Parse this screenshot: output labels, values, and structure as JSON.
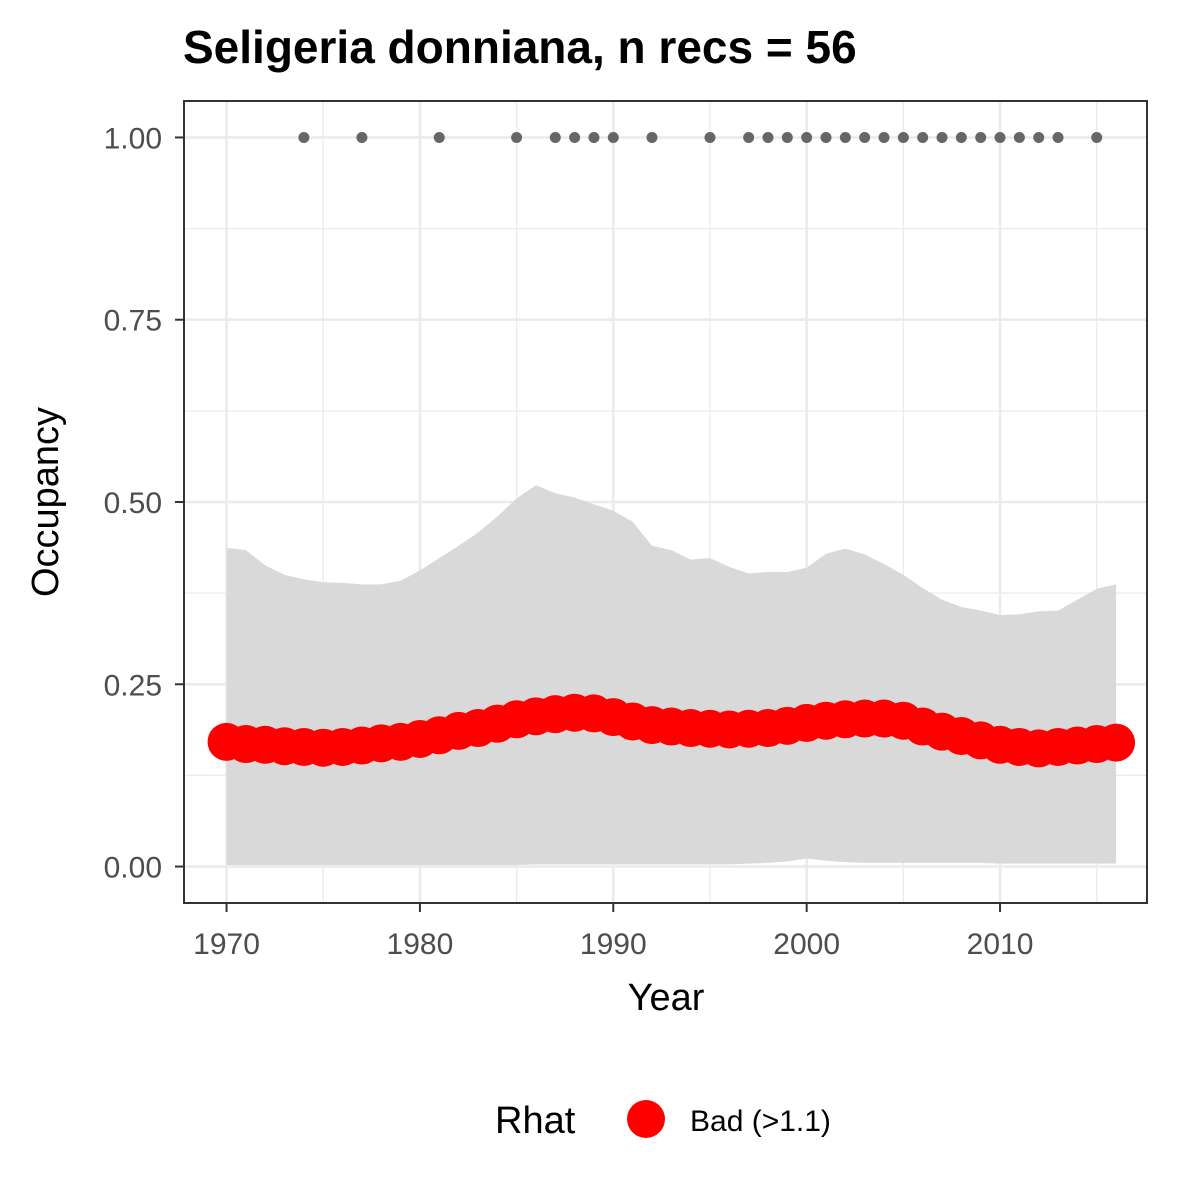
{
  "chart_data": {
    "type": "line",
    "title": "Seligeria donniana, n recs = 56",
    "xlabel": "Year",
    "ylabel": "Occupancy",
    "xlim": [
      1967.8,
      2017.6
    ],
    "ylim": [
      -0.05,
      1.05
    ],
    "x_ticks": [
      1970,
      1980,
      1990,
      2000,
      2010
    ],
    "y_ticks": [
      0.0,
      0.25,
      0.5,
      0.75,
      1.0
    ],
    "y_tick_labels": [
      "0.00",
      "0.25",
      "0.50",
      "0.75",
      "1.00"
    ],
    "grid": true,
    "legend": {
      "title": "Rhat",
      "position": "bottom",
      "entries": [
        {
          "label": "Bad (>1.1)",
          "color": "#ff0000"
        }
      ]
    },
    "colors": {
      "mean_line": "#ff0000",
      "ribbon": "#d9d9d9",
      "records": "#666666",
      "grid": "#ebebeb",
      "panel_border": "#333333"
    },
    "years": [
      1970,
      1971,
      1972,
      1973,
      1974,
      1975,
      1976,
      1977,
      1978,
      1979,
      1980,
      1981,
      1982,
      1983,
      1984,
      1985,
      1986,
      1987,
      1988,
      1989,
      1990,
      1991,
      1992,
      1993,
      1994,
      1995,
      1996,
      1997,
      1998,
      1999,
      2000,
      2001,
      2002,
      2003,
      2004,
      2005,
      2006,
      2007,
      2008,
      2009,
      2010,
      2011,
      2012,
      2013,
      2014,
      2015,
      2016
    ],
    "mean": [
      0.171,
      0.168,
      0.167,
      0.165,
      0.164,
      0.163,
      0.164,
      0.166,
      0.169,
      0.171,
      0.175,
      0.18,
      0.186,
      0.19,
      0.196,
      0.202,
      0.206,
      0.209,
      0.211,
      0.21,
      0.205,
      0.199,
      0.194,
      0.192,
      0.19,
      0.189,
      0.188,
      0.189,
      0.19,
      0.193,
      0.197,
      0.2,
      0.202,
      0.203,
      0.203,
      0.2,
      0.192,
      0.185,
      0.179,
      0.173,
      0.167,
      0.164,
      0.162,
      0.164,
      0.166,
      0.168,
      0.17
    ],
    "upper": [
      0.437,
      0.434,
      0.413,
      0.4,
      0.394,
      0.39,
      0.389,
      0.387,
      0.387,
      0.392,
      0.406,
      0.423,
      0.44,
      0.458,
      0.48,
      0.505,
      0.523,
      0.512,
      0.506,
      0.497,
      0.488,
      0.473,
      0.44,
      0.434,
      0.421,
      0.423,
      0.411,
      0.402,
      0.404,
      0.404,
      0.41,
      0.429,
      0.436,
      0.428,
      0.415,
      0.4,
      0.382,
      0.366,
      0.356,
      0.351,
      0.345,
      0.346,
      0.35,
      0.351,
      0.366,
      0.381,
      0.387
    ],
    "lower": [
      0.002,
      0.002,
      0.002,
      0.002,
      0.002,
      0.002,
      0.002,
      0.002,
      0.002,
      0.002,
      0.002,
      0.002,
      0.002,
      0.002,
      0.002,
      0.002,
      0.003,
      0.003,
      0.003,
      0.003,
      0.003,
      0.003,
      0.003,
      0.003,
      0.003,
      0.003,
      0.003,
      0.004,
      0.005,
      0.007,
      0.011,
      0.008,
      0.006,
      0.005,
      0.005,
      0.005,
      0.005,
      0.005,
      0.005,
      0.005,
      0.004,
      0.004,
      0.004,
      0.004,
      0.004,
      0.004,
      0.004
    ],
    "record_years": [
      1974,
      1977,
      1981,
      1985,
      1987,
      1988,
      1989,
      1990,
      1992,
      1995,
      1997,
      1998,
      1999,
      2000,
      2001,
      2002,
      2003,
      2004,
      2005,
      2006,
      2007,
      2008,
      2009,
      2010,
      2011,
      2012,
      2013,
      2015
    ],
    "record_value": 1.0
  }
}
